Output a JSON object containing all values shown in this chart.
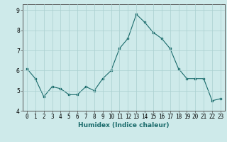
{
  "x": [
    0,
    1,
    2,
    3,
    4,
    5,
    6,
    7,
    8,
    9,
    10,
    11,
    12,
    13,
    14,
    15,
    16,
    17,
    18,
    19,
    20,
    21,
    22,
    23
  ],
  "y": [
    6.1,
    5.6,
    4.7,
    5.2,
    5.1,
    4.8,
    4.8,
    5.2,
    5.0,
    5.6,
    6.0,
    7.1,
    7.6,
    8.8,
    8.4,
    7.9,
    7.6,
    7.1,
    6.1,
    5.6,
    5.6,
    5.6,
    4.5,
    4.6
  ],
  "xlabel": "Humidex (Indice chaleur)",
  "ylim": [
    4.0,
    9.3
  ],
  "xlim": [
    -0.5,
    23.5
  ],
  "bg_color": "#ceeaea",
  "line_color": "#1a6b6b",
  "grid_color": "#aad0d0",
  "tick_label_fontsize": 5.5,
  "xlabel_fontsize": 6.5,
  "yticks": [
    4,
    5,
    6,
    7,
    8,
    9
  ]
}
